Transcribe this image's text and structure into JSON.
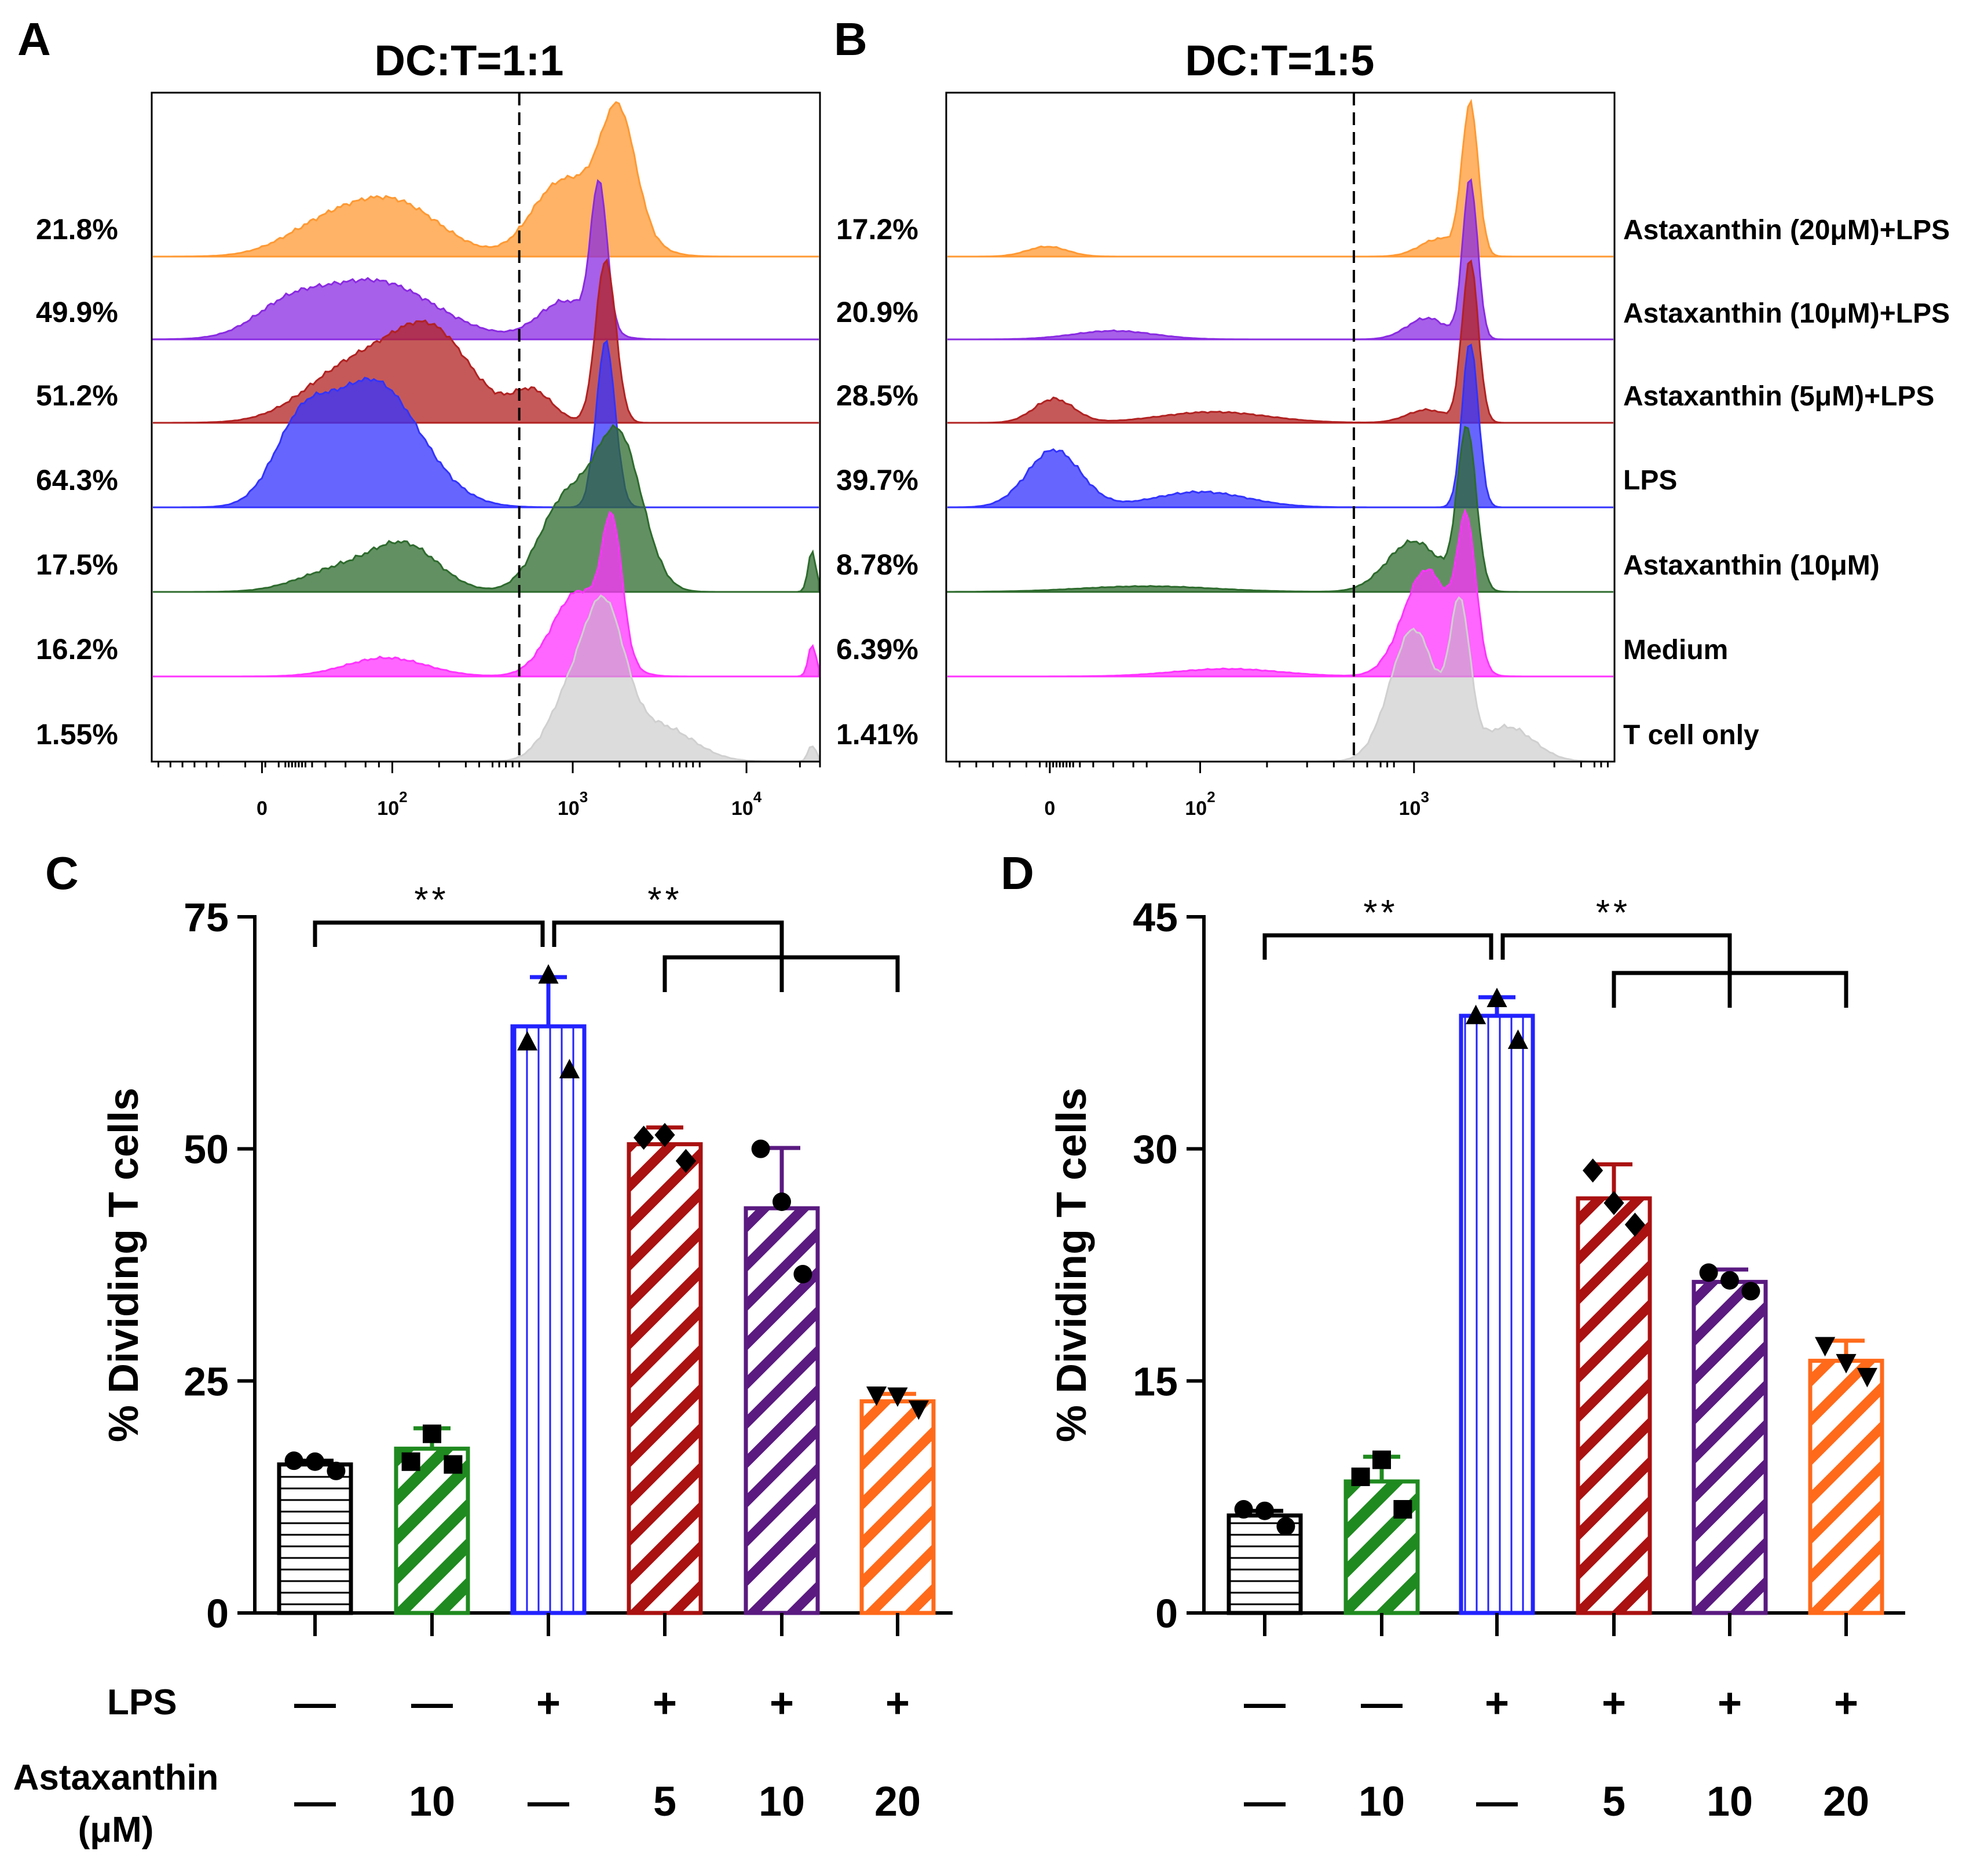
{
  "colors": {
    "t_cell_only": "#c9c9c9",
    "medium": "#ff33ff",
    "astaxanthin_10": "#2e6b2e",
    "lps": "#2222ff",
    "asta5_lps": "#aa1111",
    "asta10_lps": "#6a0d91",
    "asta20_lps": "#ff7f0e",
    "black": "#000000"
  },
  "series_labels": [
    "Astaxanthin (20μM)+LPS",
    "Astaxanthin (10μM)+LPS",
    "Astaxanthin (5μM)+LPS",
    "LPS",
    "Astaxanthin (10μM)",
    "Medium",
    "T cell only"
  ],
  "conditions": {
    "row1_label": "LPS",
    "row2_label": "Astaxanthin",
    "row2_unit": "(μM)",
    "lps": [
      "—",
      "—",
      "+",
      "+",
      "+",
      "+"
    ],
    "astaxanthin": [
      "—",
      "10",
      "—",
      "5",
      "10",
      "20"
    ]
  },
  "chart_data": [
    {
      "panel": "A",
      "type": "histogram",
      "title": "DC:T=1:1",
      "x_scale": "biexponential",
      "x_tick_labels": [
        "0",
        "10",
        "10",
        "10"
      ],
      "x_tick_exponents": [
        "",
        "2",
        "3",
        "4"
      ],
      "gate": "dashed line at ~500",
      "series": [
        {
          "name": "Astaxanthin (20μM)+LPS",
          "dividing_pct": "21.8%",
          "color": "#ff9933"
        },
        {
          "name": "Astaxanthin (10μM)+LPS",
          "dividing_pct": "49.9%",
          "color": "#8a2be2"
        },
        {
          "name": "Astaxanthin (5μM)+LPS",
          "dividing_pct": "51.2%",
          "color": "#b22222"
        },
        {
          "name": "LPS",
          "dividing_pct": "64.3%",
          "color": "#3333ff"
        },
        {
          "name": "Astaxanthin (10μM)",
          "dividing_pct": "17.5%",
          "color": "#2e6b2e"
        },
        {
          "name": "Medium",
          "dividing_pct": "16.2%",
          "color": "#ff33ff"
        },
        {
          "name": "T cell only",
          "dividing_pct": "1.55%",
          "color": "#bfbfbf"
        }
      ]
    },
    {
      "panel": "B",
      "type": "histogram",
      "title": "DC:T=1:5",
      "x_scale": "biexponential",
      "x_tick_labels": [
        "0",
        "10",
        "10"
      ],
      "x_tick_exponents": [
        "",
        "2",
        "3"
      ],
      "gate": "dashed line at ~500",
      "series": [
        {
          "name": "Astaxanthin (20μM)+LPS",
          "dividing_pct": "17.2%",
          "color": "#ff9933"
        },
        {
          "name": "Astaxanthin (10μM)+LPS",
          "dividing_pct": "20.9%",
          "color": "#8a2be2"
        },
        {
          "name": "Astaxanthin (5μM)+LPS",
          "dividing_pct": "28.5%",
          "color": "#b22222"
        },
        {
          "name": "LPS",
          "dividing_pct": "39.7%",
          "color": "#3333ff"
        },
        {
          "name": "Astaxanthin (10μM)",
          "dividing_pct": "8.78%",
          "color": "#2e6b2e"
        },
        {
          "name": "Medium",
          "dividing_pct": "6.39%",
          "color": "#ff33ff"
        },
        {
          "name": "T cell only",
          "dividing_pct": "1.41%",
          "color": "#bfbfbf"
        }
      ]
    },
    {
      "panel": "C",
      "type": "bar",
      "ylabel": "% Dividing T cells",
      "ylim": [
        0,
        75
      ],
      "yticks": [
        0,
        25,
        50,
        75
      ],
      "categories": [
        "Medium",
        "Astaxanthin (10μM)",
        "LPS",
        "Astaxanthin (5μM)+LPS",
        "Astaxanthin (10μM)+LPS",
        "Astaxanthin (20μM)+LPS"
      ],
      "values": [
        16,
        17.7,
        63.2,
        50.5,
        43.6,
        22.8
      ],
      "errors": [
        0.4,
        2.2,
        5.3,
        1.8,
        6.5,
        0.8
      ],
      "points": [
        [
          16.4,
          16.3,
          15.3
        ],
        [
          16.3,
          19.3,
          16.0
        ],
        [
          61.5,
          68.7,
          58.5
        ],
        [
          51.2,
          51.5,
          48.7
        ],
        [
          50.0,
          44.3,
          36.5
        ],
        [
          23.5,
          23.4,
          22.0
        ]
      ],
      "significance": [
        {
          "label": "**",
          "from": "Medium",
          "to": "LPS"
        },
        {
          "label": "**",
          "from": "LPS",
          "to": [
            "Astaxanthin (5μM)+LPS",
            "Astaxanthin (10μM)+LPS",
            "Astaxanthin (20μM)+LPS"
          ]
        }
      ]
    },
    {
      "panel": "D",
      "type": "bar",
      "ylabel": "% Dividing T cells",
      "ylim": [
        0,
        45
      ],
      "yticks": [
        0,
        15,
        30,
        45
      ],
      "categories": [
        "Medium",
        "Astaxanthin (10μM)",
        "LPS",
        "Astaxanthin (5μM)+LPS",
        "Astaxanthin (10μM)+LPS",
        "Astaxanthin (20μM)+LPS"
      ],
      "values": [
        6.3,
        8.5,
        38.6,
        26.8,
        21.4,
        16.3
      ],
      "errors": [
        0.3,
        1.6,
        1.2,
        2.2,
        0.8,
        1.3
      ],
      "points": [
        [
          6.7,
          6.6,
          5.6
        ],
        [
          8.8,
          9.9,
          6.7
        ],
        [
          38.6,
          39.7,
          37.0
        ],
        [
          28.6,
          26.5,
          25.1
        ],
        [
          22.0,
          21.5,
          20.8
        ],
        [
          17.3,
          16.2,
          15.3
        ]
      ],
      "significance": [
        {
          "label": "**",
          "from": "Medium",
          "to": "LPS"
        },
        {
          "label": "**",
          "from": "LPS",
          "to": [
            "Astaxanthin (5μM)+LPS",
            "Astaxanthin (10μM)+LPS",
            "Astaxanthin (20μM)+LPS"
          ]
        }
      ]
    }
  ]
}
